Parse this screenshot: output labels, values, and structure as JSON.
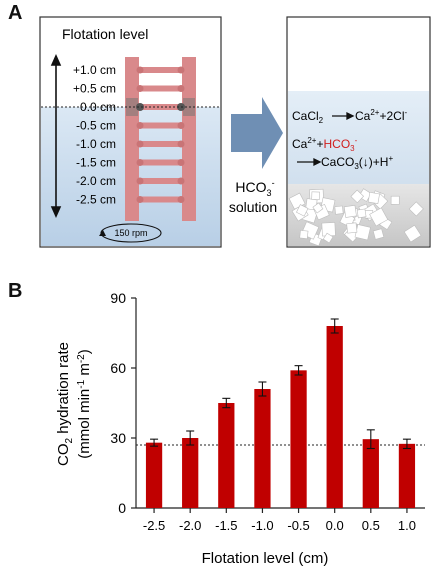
{
  "panel_a": {
    "letter": "A",
    "left_box": {
      "title": "Flotation level",
      "levels": [
        "+1.0 cm",
        "+0.5 cm",
        "0.0 cm",
        "-0.5 cm",
        "-1.0 cm",
        "-1.5 cm",
        "-2.0 cm",
        "-2.5 cm"
      ],
      "rpm_label": "150 rpm"
    },
    "arrow_label_main": "HCO",
    "arrow_label_sub": "3",
    "arrow_label_sup": "-",
    "arrow_label_line2": "solution",
    "right_box": {
      "eq1_left": "CaCl",
      "eq1_left_sub": "2",
      "eq1_right": "Ca",
      "eq1_right_sup": "2+",
      "eq1_right_tail": "+2Cl",
      "eq1_right_tail_sup": "-",
      "eq2_ca": "Ca",
      "eq2_ca_sup": "2+",
      "eq2_plus": "+",
      "eq2_hco": "HCO",
      "eq2_hco_sub": "3",
      "eq2_hco_sup": "-",
      "eq3_product": "CaCO",
      "eq3_product_sub": "3",
      "eq3_precip": "(↓)",
      "eq3_tail": "+H",
      "eq3_tail_sup": "+"
    },
    "colors": {
      "water": "#c9dcee",
      "ladder": "#d9898b",
      "arrow": "#6f8fb4",
      "highlight": "#d01f1f"
    }
  },
  "panel_b": {
    "letter": "B"
  },
  "chart_data": {
    "type": "bar",
    "categories": [
      "-2.5",
      "-2.0",
      "-1.5",
      "-1.0",
      "-0.5",
      "0.0",
      "0.5",
      "1.0"
    ],
    "values": [
      28,
      30,
      45,
      51,
      59,
      78,
      29.5,
      27.5
    ],
    "errors": [
      1.5,
      3,
      2,
      3,
      2,
      3,
      4,
      2
    ],
    "xlabel": "Flotation level (cm)",
    "ylabel_main": "CO",
    "ylabel_sub": "2",
    "ylabel_rest": " hydration rate",
    "ylabel_line2_a": "(mmol min",
    "ylabel_line2_sup1": "-1",
    "ylabel_line2_b": " m",
    "ylabel_line2_sup2": "-2",
    "ylabel_line2_c": ")",
    "yticks": [
      "0",
      "30",
      "60",
      "90"
    ],
    "ylim": [
      0,
      90
    ],
    "reference_line": 27,
    "bar_color": "#c00000"
  }
}
